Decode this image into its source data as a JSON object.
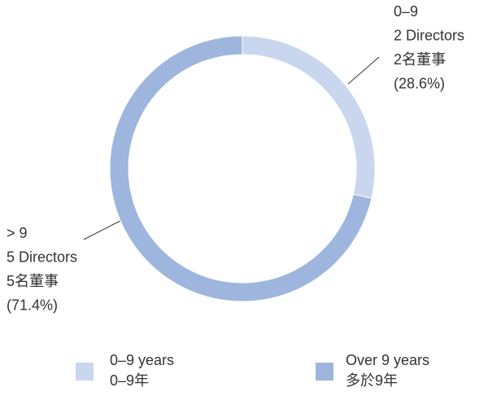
{
  "chart_data": {
    "type": "pie",
    "donut": true,
    "categories": [
      "0–9",
      "> 9"
    ],
    "values": [
      28.6,
      71.4
    ],
    "value_labels": [
      "(28.6%)",
      "(71.4%)"
    ],
    "label_lines": [
      [
        "2 Directors",
        "2名董事"
      ],
      [
        "5 Directors",
        "5名董事"
      ]
    ],
    "colors": [
      "#c9d7ee",
      "#9eb6dd"
    ],
    "legend": [
      [
        "0–9 years",
        "0–9年"
      ],
      [
        "Over 9 years",
        "多於9年"
      ]
    ]
  }
}
